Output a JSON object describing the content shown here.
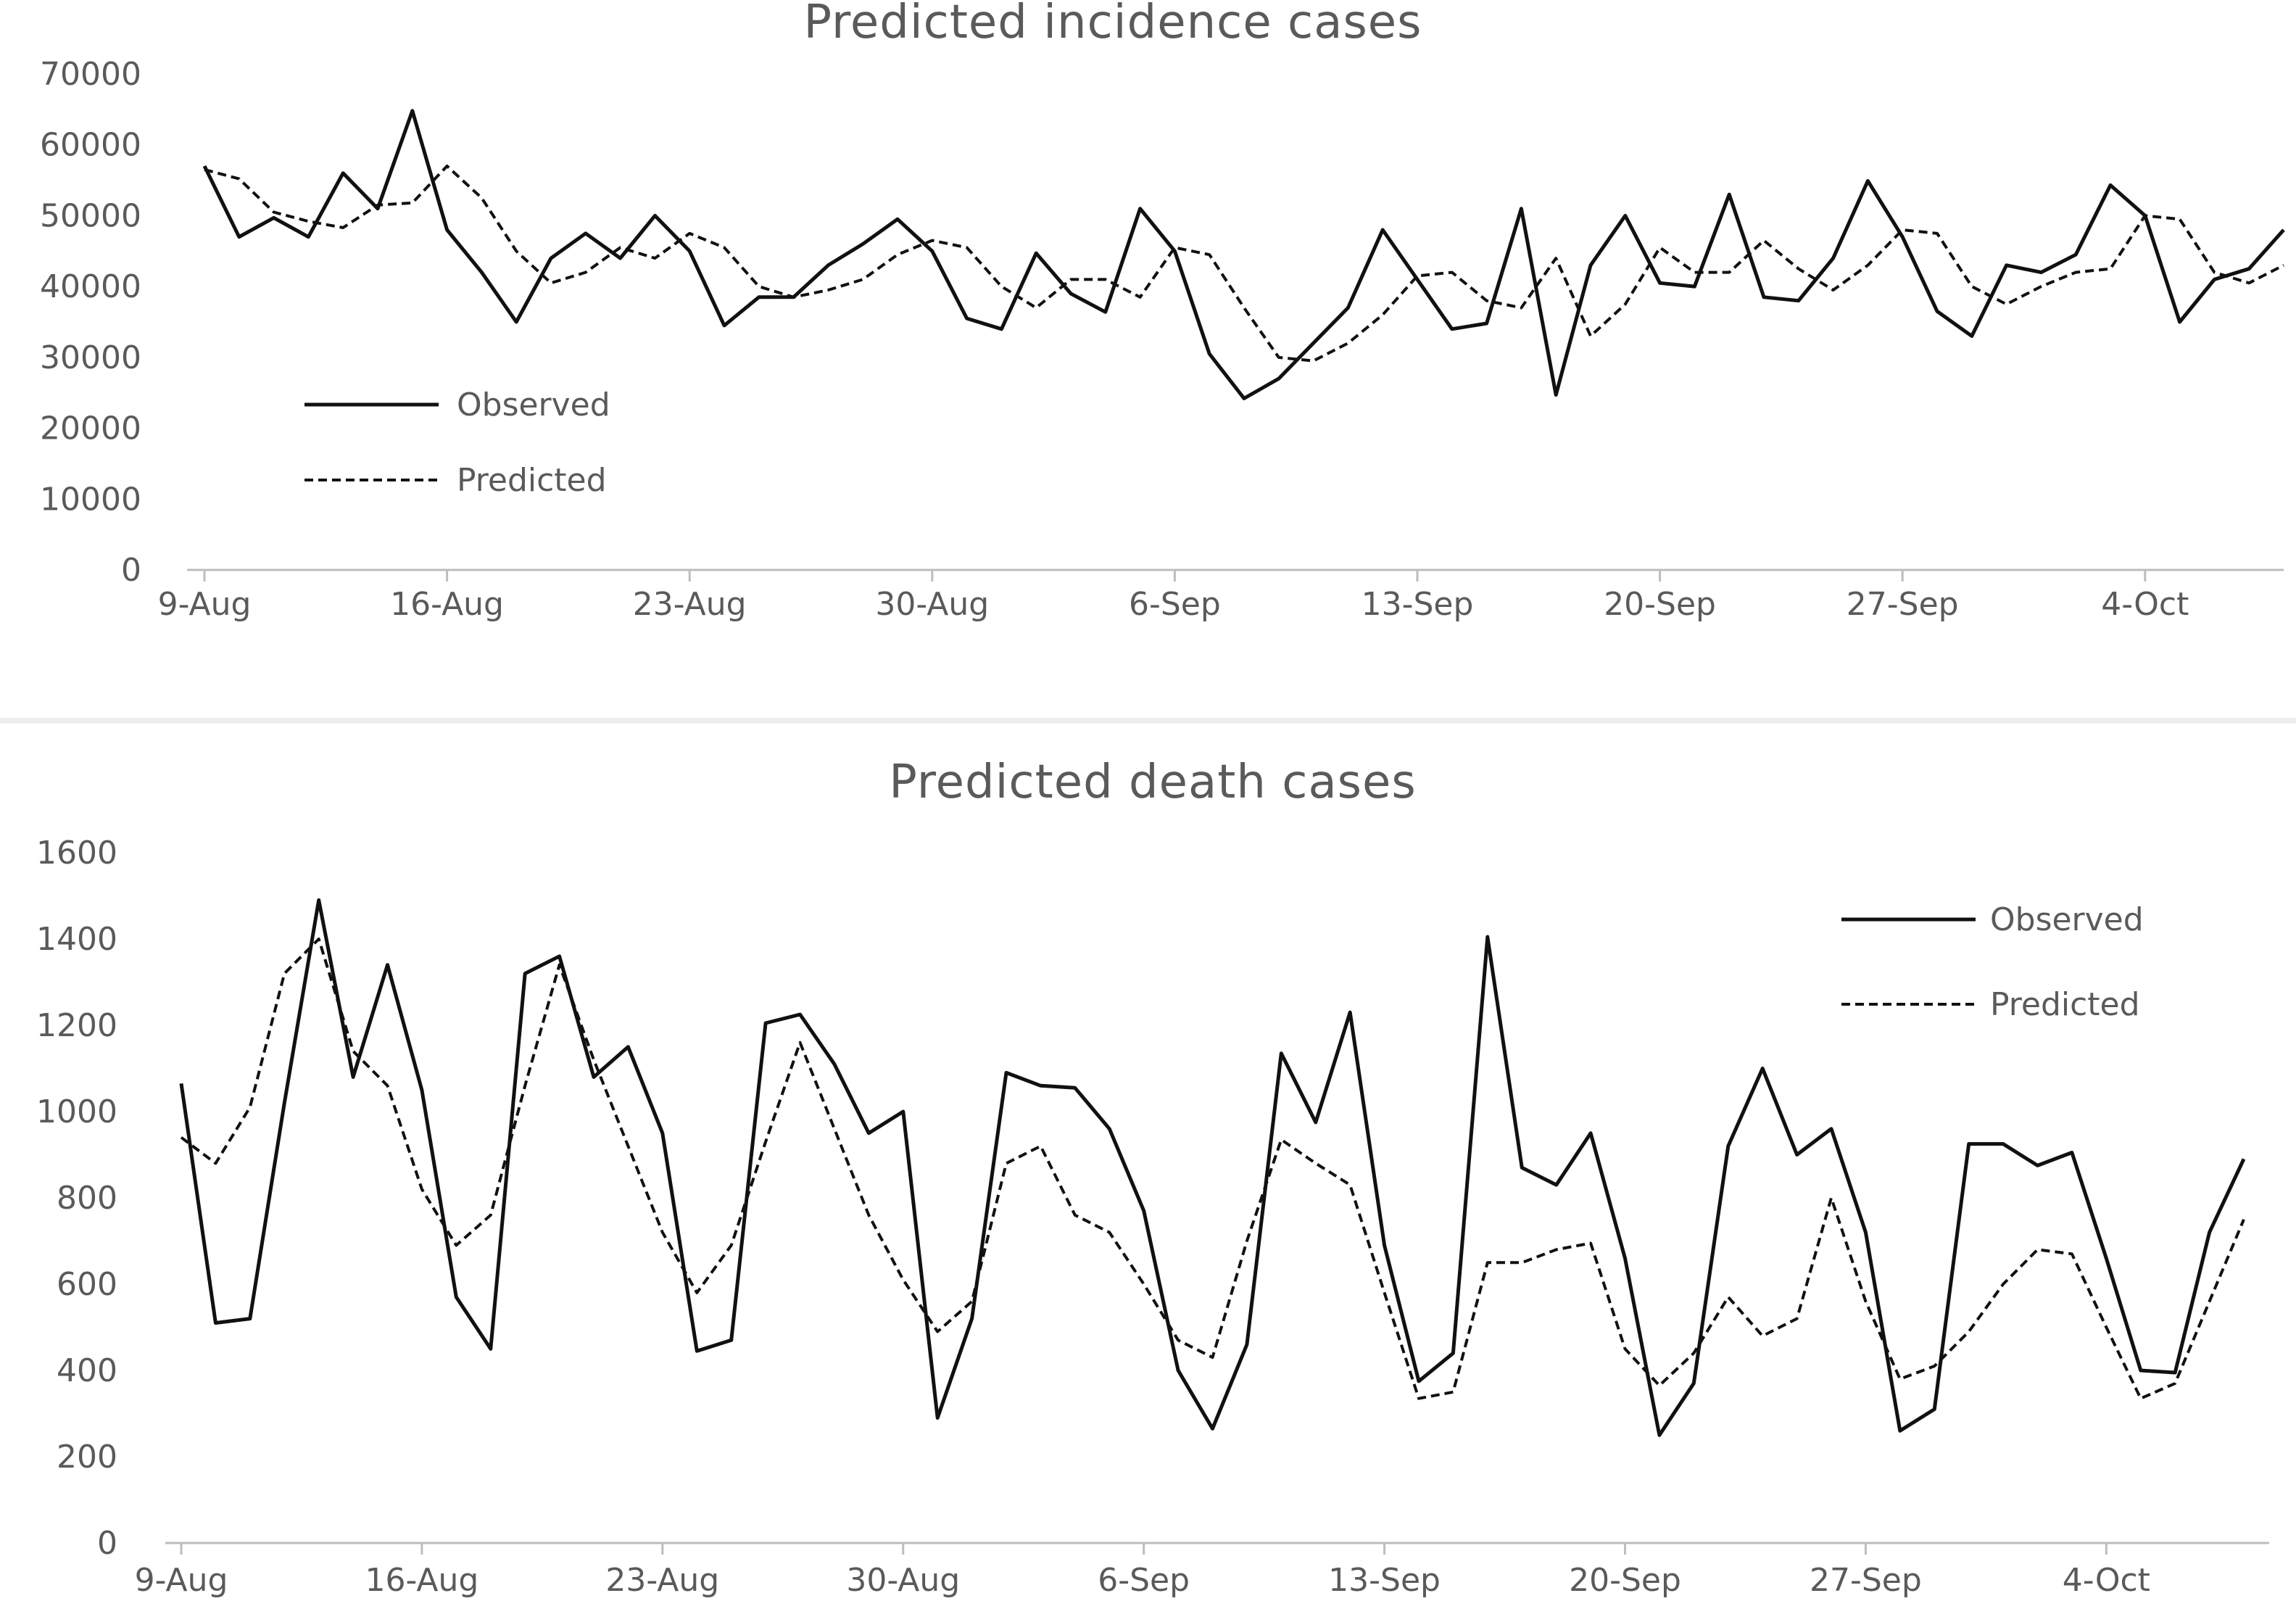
{
  "chart_data": [
    {
      "type": "line",
      "title": "Predicted incidence cases",
      "xlabel": "",
      "ylabel": "",
      "x_tick_labels": [
        "9-Aug",
        "16-Aug",
        "23-Aug",
        "30-Aug",
        "6-Sep",
        "13-Sep",
        "20-Sep",
        "27-Sep",
        "4-Oct"
      ],
      "y_ticks": [
        0,
        10000,
        20000,
        30000,
        40000,
        50000,
        60000,
        70000
      ],
      "ylim": [
        0,
        70000
      ],
      "grid": false,
      "legend_position": "left",
      "x": [
        "9-Aug",
        "10-Aug",
        "11-Aug",
        "12-Aug",
        "13-Aug",
        "14-Aug",
        "15-Aug",
        "16-Aug",
        "17-Aug",
        "18-Aug",
        "19-Aug",
        "20-Aug",
        "21-Aug",
        "22-Aug",
        "23-Aug",
        "24-Aug",
        "25-Aug",
        "26-Aug",
        "27-Aug",
        "28-Aug",
        "29-Aug",
        "30-Aug",
        "31-Aug",
        "1-Sep",
        "2-Sep",
        "3-Sep",
        "4-Sep",
        "5-Sep",
        "6-Sep",
        "7-Sep",
        "8-Sep",
        "9-Sep",
        "10-Sep",
        "11-Sep",
        "12-Sep",
        "13-Sep",
        "14-Sep",
        "15-Sep",
        "16-Sep",
        "17-Sep",
        "18-Sep",
        "19-Sep",
        "20-Sep",
        "21-Sep",
        "22-Sep",
        "23-Sep",
        "24-Sep",
        "25-Sep",
        "26-Sep",
        "27-Sep",
        "28-Sep",
        "29-Sep",
        "30-Sep",
        "1-Oct",
        "2-Oct",
        "3-Oct",
        "4-Oct",
        "5-Oct",
        "6-Oct",
        "7-Oct",
        "8-Oct"
      ],
      "series": [
        {
          "name": "Observed",
          "style": "solid",
          "values": [
            57000,
            47000,
            49700,
            47000,
            56000,
            51000,
            64800,
            48000,
            42000,
            35000,
            44000,
            47500,
            44000,
            50000,
            45000,
            34500,
            38500,
            38500,
            43000,
            46000,
            49500,
            45000,
            35500,
            34000,
            44700,
            39000,
            36400,
            51000,
            45000,
            30500,
            24200,
            27000,
            32000,
            37000,
            48000,
            41000,
            34000,
            34800,
            51000,
            24700,
            43000,
            50000,
            40500,
            40000,
            53000,
            38500,
            38000,
            44000,
            54900,
            47000,
            36500,
            33000,
            43000,
            42000,
            44500,
            54300,
            50000,
            35000,
            41000,
            42500,
            48000
          ]
        },
        {
          "name": "Predicted",
          "style": "dashed",
          "values": [
            56500,
            55200,
            50500,
            49200,
            48300,
            51500,
            51800,
            57000,
            52500,
            45000,
            40500,
            42000,
            45500,
            44000,
            47500,
            45500,
            40000,
            38500,
            39500,
            41000,
            44500,
            46500,
            45500,
            40000,
            37000,
            41000,
            41000,
            38500,
            45500,
            44500,
            37000,
            30000,
            29500,
            32000,
            36000,
            41500,
            42000,
            38000,
            37000,
            44000,
            33000,
            37500,
            45500,
            42000,
            42000,
            46500,
            42500,
            39500,
            43000,
            48000,
            47500,
            40000,
            37500,
            40000,
            42000,
            42500,
            50000,
            49500,
            42000,
            40500,
            43000
          ]
        }
      ]
    },
    {
      "type": "line",
      "title": "Predicted death cases",
      "xlabel": "",
      "ylabel": "",
      "x_tick_labels": [
        "9-Aug",
        "16-Aug",
        "23-Aug",
        "30-Aug",
        "6-Sep",
        "13-Sep",
        "20-Sep",
        "27-Sep",
        "4-Oct"
      ],
      "y_ticks": [
        0,
        200,
        400,
        600,
        800,
        1000,
        1200,
        1400,
        1600
      ],
      "ylim": [
        0,
        1600
      ],
      "grid": false,
      "legend_position": "top-right",
      "x": [
        "9-Aug",
        "10-Aug",
        "11-Aug",
        "12-Aug",
        "13-Aug",
        "14-Aug",
        "15-Aug",
        "16-Aug",
        "17-Aug",
        "18-Aug",
        "19-Aug",
        "20-Aug",
        "21-Aug",
        "22-Aug",
        "23-Aug",
        "24-Aug",
        "25-Aug",
        "26-Aug",
        "27-Aug",
        "28-Aug",
        "29-Aug",
        "30-Aug",
        "31-Aug",
        "1-Sep",
        "2-Sep",
        "3-Sep",
        "4-Sep",
        "5-Sep",
        "6-Sep",
        "7-Sep",
        "8-Sep",
        "9-Sep",
        "10-Sep",
        "11-Sep",
        "12-Sep",
        "13-Sep",
        "14-Sep",
        "15-Sep",
        "16-Sep",
        "17-Sep",
        "18-Sep",
        "19-Sep",
        "20-Sep",
        "21-Sep",
        "22-Sep",
        "23-Sep",
        "24-Sep",
        "25-Sep",
        "26-Sep",
        "27-Sep",
        "28-Sep",
        "29-Sep",
        "30-Sep",
        "1-Oct",
        "2-Oct",
        "3-Oct",
        "4-Oct",
        "5-Oct",
        "6-Oct",
        "7-Oct",
        "8-Oct"
      ],
      "series": [
        {
          "name": "Observed",
          "style": "solid",
          "values": [
            1065,
            510,
            520,
            1020,
            1490,
            1080,
            1340,
            1050,
            570,
            450,
            1320,
            1360,
            1080,
            1150,
            950,
            445,
            470,
            1205,
            1225,
            1110,
            950,
            1000,
            290,
            520,
            1090,
            1060,
            1055,
            960,
            770,
            400,
            265,
            460,
            1135,
            975,
            1230,
            690,
            375,
            440,
            1405,
            870,
            830,
            950,
            660,
            250,
            370,
            920,
            1100,
            900,
            960,
            720,
            260,
            310,
            925,
            925,
            875,
            905,
            660,
            400,
            395,
            720,
            890
          ]
        },
        {
          "name": "Predicted",
          "style": "dashed",
          "values": [
            940,
            880,
            1010,
            1320,
            1400,
            1140,
            1060,
            820,
            690,
            760,
            1060,
            1340,
            1120,
            920,
            720,
            580,
            690,
            930,
            1160,
            960,
            760,
            610,
            490,
            560,
            880,
            920,
            760,
            720,
            600,
            470,
            430,
            700,
            935,
            880,
            830,
            580,
            335,
            350,
            650,
            650,
            680,
            695,
            450,
            365,
            440,
            570,
            480,
            520,
            800,
            560,
            380,
            410,
            490,
            600,
            680,
            670,
            500,
            335,
            370,
            560,
            750
          ]
        }
      ]
    }
  ],
  "legend": {
    "observed_label": "Observed",
    "predicted_label": "Predicted"
  }
}
